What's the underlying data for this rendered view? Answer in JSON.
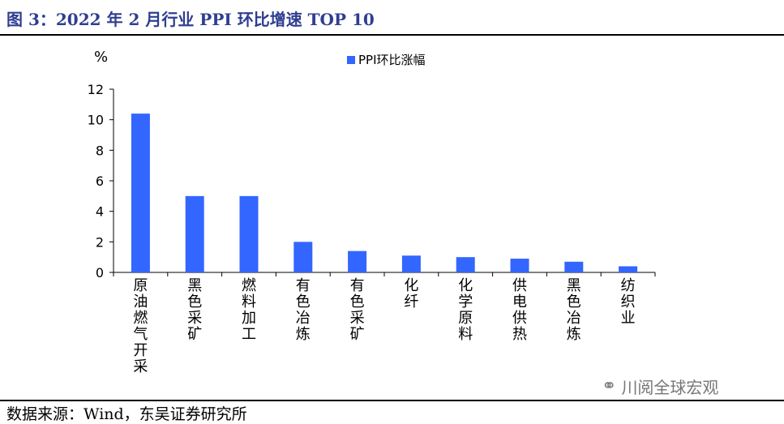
{
  "figure": {
    "title": "图 3：2022 年 2 月行业 PPI 环比增速 TOP 10",
    "source": "数据来源：Wind，东吴证券研究所",
    "watermark": "川阅全球宏观",
    "watermark_icon": "wechat-icon"
  },
  "chart_data": {
    "type": "bar",
    "ylabel": "%",
    "ylim": [
      0,
      12
    ],
    "yticks": [
      0,
      2,
      4,
      6,
      8,
      10,
      12
    ],
    "grid": false,
    "legend_position": "top-center",
    "series": [
      {
        "name": "PPI环比涨幅",
        "color": "#3366ff",
        "values": [
          10.4,
          5.0,
          5.0,
          2.0,
          1.4,
          1.1,
          1.0,
          0.9,
          0.7,
          0.4
        ]
      }
    ],
    "categories": [
      "原油燃气开采",
      "黑色采矿",
      "燃料加工",
      "有色冶炼",
      "有色采矿",
      "化纤",
      "化学原料",
      "供电供热",
      "黑色冶炼",
      "纺织业"
    ]
  }
}
